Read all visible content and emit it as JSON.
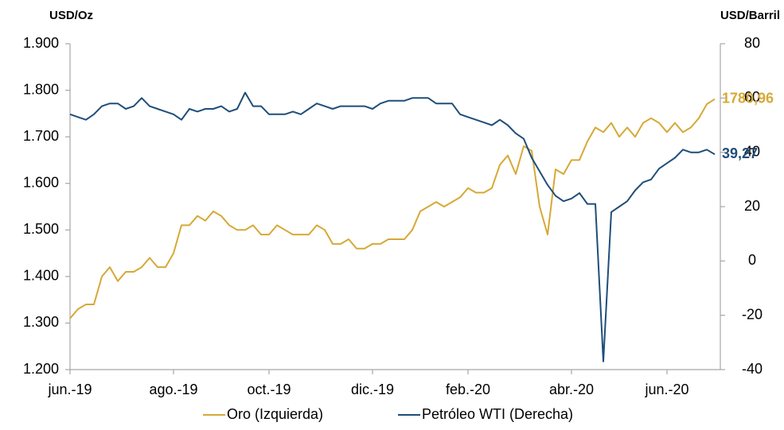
{
  "chart_data": {
    "type": "line",
    "y_label": "USD/Oz",
    "y2_label": "USD/Barril",
    "categories": [
      "jun.-19",
      null,
      null,
      null,
      null,
      null,
      null,
      null,
      null,
      null,
      null,
      null,
      null,
      "ago.-19",
      null,
      null,
      null,
      null,
      null,
      null,
      null,
      null,
      null,
      null,
      null,
      "oct.-19",
      null,
      null,
      null,
      null,
      null,
      null,
      null,
      null,
      null,
      null,
      null,
      null,
      "dic.-19",
      null,
      null,
      null,
      null,
      null,
      null,
      null,
      null,
      null,
      null,
      null,
      "feb.-20",
      null,
      null,
      null,
      null,
      null,
      null,
      null,
      null,
      null,
      null,
      null,
      null,
      "abr.-20",
      null,
      null,
      null,
      null,
      null,
      null,
      null,
      null,
      null,
      null,
      null,
      "jun.-20",
      null,
      null,
      null,
      null,
      null,
      null
    ],
    "series": [
      {
        "name": "Oro (Izquierda)",
        "color": "#d6a936",
        "axis": "y",
        "end_label": "1780,96",
        "values": [
          1310,
          1330,
          1340,
          1340,
          1400,
          1420,
          1390,
          1410,
          1410,
          1420,
          1440,
          1420,
          1420,
          1450,
          1510,
          1510,
          1530,
          1520,
          1540,
          1530,
          1510,
          1500,
          1500,
          1510,
          1490,
          1490,
          1510,
          1500,
          1490,
          1490,
          1490,
          1510,
          1500,
          1470,
          1470,
          1480,
          1460,
          1460,
          1470,
          1470,
          1480,
          1480,
          1480,
          1500,
          1540,
          1550,
          1560,
          1550,
          1560,
          1570,
          1590,
          1580,
          1580,
          1590,
          1640,
          1660,
          1620,
          1680,
          1670,
          1550,
          1490,
          1630,
          1620,
          1650,
          1650,
          1690,
          1720,
          1710,
          1730,
          1700,
          1720,
          1700,
          1730,
          1740,
          1730,
          1710,
          1730,
          1710,
          1720,
          1740,
          1770,
          1780.96
        ]
      },
      {
        "name": "Petróleo WTI (Derecha)",
        "color": "#1f4e79",
        "axis": "y2",
        "end_label": "39,27",
        "values": [
          54,
          53,
          52,
          54,
          57,
          58,
          58,
          56,
          57,
          60,
          57,
          56,
          55,
          54,
          52,
          56,
          55,
          56,
          56,
          57,
          55,
          56,
          62,
          57,
          57,
          54,
          54,
          54,
          55,
          54,
          56,
          58,
          57,
          56,
          57,
          57,
          57,
          57,
          56,
          58,
          59,
          59,
          59,
          60,
          60,
          60,
          58,
          58,
          58,
          54,
          53,
          52,
          51,
          50,
          52,
          50,
          47,
          45,
          38,
          33,
          28,
          24,
          22,
          23,
          25,
          21,
          21,
          -37,
          18,
          20,
          22,
          26,
          29,
          30,
          34,
          36,
          38,
          41,
          40,
          40,
          41,
          39.27
        ]
      }
    ],
    "ylim": [
      1200,
      1900
    ],
    "yticks": [
      {
        "value": 1200,
        "label": "1.200"
      },
      {
        "value": 1300,
        "label": "1.300"
      },
      {
        "value": 1400,
        "label": "1.400"
      },
      {
        "value": 1500,
        "label": "1.500"
      },
      {
        "value": 1600,
        "label": "1.600"
      },
      {
        "value": 1700,
        "label": "1.700"
      },
      {
        "value": 1800,
        "label": "1.800"
      },
      {
        "value": 1900,
        "label": "1.900"
      }
    ],
    "y2lim": [
      -40,
      80
    ],
    "y2ticks": [
      -40,
      -20,
      0,
      20,
      40,
      60,
      80
    ],
    "grid": false,
    "legend": "bottom"
  }
}
